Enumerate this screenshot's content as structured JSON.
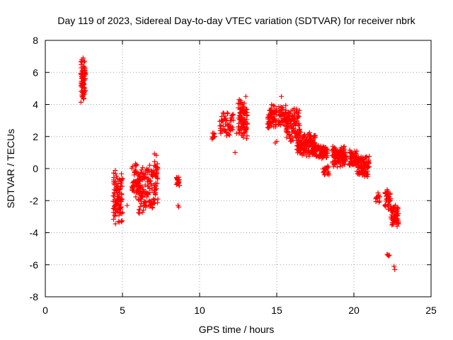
{
  "chart_data": {
    "type": "scatter",
    "title": "Day 119 of 2023, Sidereal Day-to-day VTEC variation (SDTVAR) for receiver nbrk",
    "xlabel": "GPS time / hours",
    "ylabel": "SDTVAR / TECUs",
    "xlim": [
      0,
      25
    ],
    "ylim": [
      -8,
      8
    ],
    "xticks": [
      0,
      5,
      10,
      15,
      20,
      25
    ],
    "yticks": [
      -8,
      -6,
      -4,
      -2,
      0,
      2,
      4,
      6,
      8
    ],
    "xtick_labels": [
      "0",
      "5",
      "10",
      "15",
      "20",
      "25"
    ],
    "ytick_labels": [
      "-8",
      "-6",
      "-4",
      "-2",
      "0",
      "2",
      "4",
      "6",
      "8"
    ],
    "grid": true,
    "marker": "plus",
    "color": "#ff0000",
    "series": [
      {
        "name": "SDTVAR",
        "clusters": [
          {
            "x": [
              2.3,
              2.6
            ],
            "y": [
              4.0,
              7.1
            ],
            "n": 80
          },
          {
            "x": [
              4.4,
              5.0
            ],
            "y": [
              -3.5,
              0.1
            ],
            "n": 110
          },
          {
            "x": [
              5.6,
              6.2
            ],
            "y": [
              -1.8,
              0.5
            ],
            "n": 60
          },
          {
            "x": [
              6.0,
              7.0
            ],
            "y": [
              -2.8,
              -0.5
            ],
            "n": 70
          },
          {
            "x": [
              6.2,
              7.0
            ],
            "y": [
              -1.0,
              0.3
            ],
            "n": 30
          },
          {
            "x": [
              7.0,
              7.3
            ],
            "y": [
              -2.3,
              1.0
            ],
            "n": 45
          },
          {
            "x": [
              8.5,
              8.7
            ],
            "y": [
              -1.2,
              -0.5
            ],
            "n": 18
          },
          {
            "x": [
              10.8,
              11.0
            ],
            "y": [
              1.6,
              2.4
            ],
            "n": 10
          },
          {
            "x": [
              11.3,
              12.2
            ],
            "y": [
              1.8,
              3.7
            ],
            "n": 55
          },
          {
            "x": [
              12.5,
              13.1
            ],
            "y": [
              1.7,
              4.6
            ],
            "n": 90
          },
          {
            "x": [
              14.4,
              15.0
            ],
            "y": [
              2.3,
              4.0
            ],
            "n": 60
          },
          {
            "x": [
              15.1,
              15.8
            ],
            "y": [
              2.5,
              4.0
            ],
            "n": 60
          },
          {
            "x": [
              15.6,
              16.5
            ],
            "y": [
              1.5,
              3.9
            ],
            "n": 100
          },
          {
            "x": [
              16.3,
              17.5
            ],
            "y": [
              0.7,
              2.3
            ],
            "n": 130
          },
          {
            "x": [
              17.3,
              18.3
            ],
            "y": [
              0.6,
              1.5
            ],
            "n": 90
          },
          {
            "x": [
              18.0,
              18.4
            ],
            "y": [
              -0.5,
              0.2
            ],
            "n": 20
          },
          {
            "x": [
              18.6,
              19.5
            ],
            "y": [
              0.0,
              1.6
            ],
            "n": 110
          },
          {
            "x": [
              19.7,
              20.2
            ],
            "y": [
              0.0,
              1.2
            ],
            "n": 60
          },
          {
            "x": [
              20.2,
              21.0
            ],
            "y": [
              -0.6,
              0.9
            ],
            "n": 90
          },
          {
            "x": [
              21.4,
              21.7
            ],
            "y": [
              -2.5,
              -1.3
            ],
            "n": 12
          },
          {
            "x": [
              22.0,
              22.4
            ],
            "y": [
              -2.7,
              -1.2
            ],
            "n": 35
          },
          {
            "x": [
              22.4,
              22.9
            ],
            "y": [
              -3.7,
              -2.2
            ],
            "n": 60
          }
        ],
        "points": [
          {
            "x": 5.3,
            "y": -2.3
          },
          {
            "x": 8.6,
            "y": -2.3
          },
          {
            "x": 8.65,
            "y": -2.4
          },
          {
            "x": 12.3,
            "y": 1.0
          },
          {
            "x": 12.4,
            "y": 2.2
          },
          {
            "x": 15.3,
            "y": 4.5
          },
          {
            "x": 14.9,
            "y": 1.6
          },
          {
            "x": 15.0,
            "y": 1.7
          },
          {
            "x": 22.2,
            "y": -5.4
          },
          {
            "x": 22.25,
            "y": -5.45
          },
          {
            "x": 22.3,
            "y": -5.4
          },
          {
            "x": 22.15,
            "y": -5.35
          },
          {
            "x": 22.6,
            "y": -6.1
          },
          {
            "x": 22.65,
            "y": -6.3
          },
          {
            "x": 22.8,
            "y": -3.6
          },
          {
            "x": 2.45,
            "y": 6.9
          },
          {
            "x": 13.0,
            "y": 4.5
          }
        ]
      }
    ]
  }
}
